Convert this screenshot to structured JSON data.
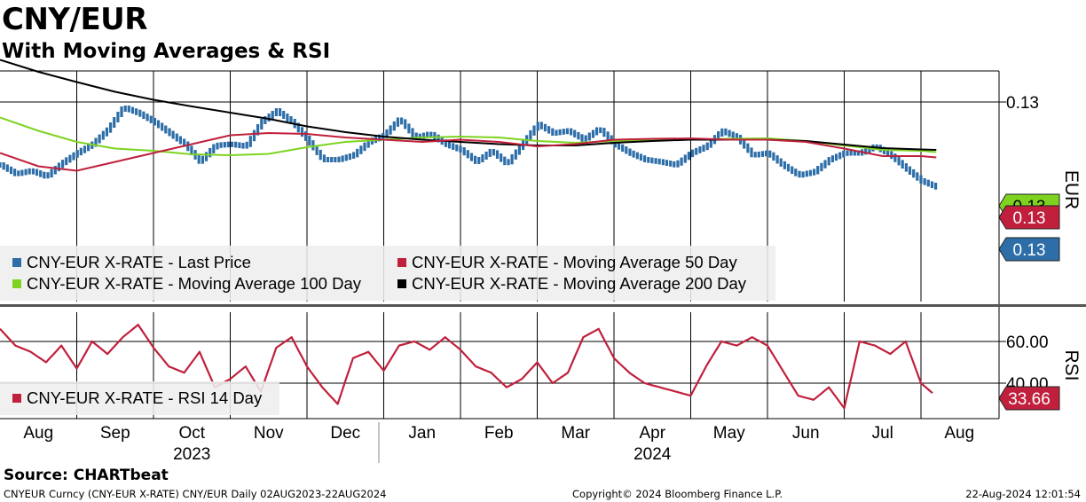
{
  "title": "CNY/EUR",
  "subtitle": "With Moving Averages & RSI",
  "source": "Source:  CHARTbeat",
  "footer": {
    "left": "CNYEUR Curncy (CNY-EUR X-RATE) CNY/EUR  Daily 02AUG2023-22AUG2024",
    "center": "Copyright© 2024 Bloomberg Finance L.P.",
    "right": "22-Aug-2024 12:01:54"
  },
  "colors": {
    "price": "#2d6ea8",
    "ma50": "#c0203c",
    "ma100": "#7ed321",
    "ma200": "#000000",
    "rsi": "#c0203c",
    "grid": "#000000"
  },
  "chart_data": [
    {
      "type": "line",
      "panel": "price",
      "title": "CNY/EUR",
      "ylabel": "EUR",
      "ylim": [
        0.1255,
        0.1307
      ],
      "yticks": [
        {
          "value": 0.13,
          "label": "0.13"
        }
      ],
      "months": [
        "Aug",
        "Sep",
        "Oct",
        "Nov",
        "Dec",
        "Jan",
        "Feb",
        "Mar",
        "Apr",
        "May",
        "Jun",
        "Jul",
        "Aug"
      ],
      "years": [
        {
          "label": "2023",
          "month_index": 2
        },
        {
          "label": "2024",
          "month_index": 8
        }
      ],
      "legend": [
        {
          "label": "CNY-EUR X-RATE - Last Price",
          "color": "#2d6ea8"
        },
        {
          "label": "CNY-EUR X-RATE - Moving Average 50 Day",
          "color": "#c0203c"
        },
        {
          "label": "CNY-EUR X-RATE - Moving Average 100 Day",
          "color": "#7ed321"
        },
        {
          "label": "CNY-EUR X-RATE - Moving Average 200 Day",
          "color": "#000000"
        }
      ],
      "last_value_tags": [
        {
          "label": "0.13",
          "value": 0.12889,
          "color": "#7ed321"
        },
        {
          "label": "0.13",
          "value": 0.12872,
          "color": "#c0203c"
        },
        {
          "label": "0.13",
          "value": 0.12818,
          "color": "#2d6ea8"
        }
      ],
      "series": [
        {
          "name": "CNY-EUR X-RATE - Last Price",
          "x_months": [
            0,
            0.2,
            0.4,
            0.6,
            0.8,
            1,
            1.2,
            1.4,
            1.6,
            1.8,
            2,
            2.2,
            2.4,
            2.6,
            2.8,
            3,
            3.2,
            3.4,
            3.6,
            3.8,
            4,
            4.2,
            4.4,
            4.6,
            4.8,
            5,
            5.2,
            5.4,
            5.6,
            5.8,
            6,
            6.2,
            6.4,
            6.6,
            6.8,
            7,
            7.2,
            7.4,
            7.6,
            7.8,
            8,
            8.2,
            8.4,
            8.6,
            8.8,
            9,
            9.2,
            9.4,
            9.6,
            9.8,
            10,
            10.2,
            10.4,
            10.6,
            10.8,
            11,
            11.2,
            11.4,
            11.6,
            11.8,
            12,
            12.2
          ],
          "values": [
            0.12858,
            0.12838,
            0.12845,
            0.12832,
            0.12862,
            0.12885,
            0.12905,
            0.12938,
            0.12988,
            0.12975,
            0.12955,
            0.1293,
            0.12905,
            0.12865,
            0.12902,
            0.12905,
            0.129,
            0.12955,
            0.1298,
            0.12955,
            0.12915,
            0.1287,
            0.1287,
            0.1288,
            0.1291,
            0.12925,
            0.12962,
            0.1292,
            0.12928,
            0.12905,
            0.12892,
            0.12865,
            0.1289,
            0.1286,
            0.12905,
            0.1295,
            0.1293,
            0.12935,
            0.12915,
            0.1294,
            0.12905,
            0.12885,
            0.1287,
            0.12865,
            0.12858,
            0.12885,
            0.129,
            0.12935,
            0.1292,
            0.1288,
            0.12885,
            0.12857,
            0.12835,
            0.12842,
            0.1287,
            0.12885,
            0.12885,
            0.129,
            0.1288,
            0.1285,
            0.12822,
            0.12808
          ]
        },
        {
          "name": "CNY-EUR X-RATE - Moving Average 50 Day",
          "x_months": [
            0,
            0.5,
            1,
            1.5,
            2,
            2.5,
            3,
            3.5,
            4,
            4.5,
            5,
            5.5,
            6,
            6.5,
            7,
            7.5,
            8,
            8.5,
            9,
            9.5,
            10,
            10.5,
            11,
            11.5,
            12,
            12.2
          ],
          "values": [
            0.12885,
            0.12855,
            0.12845,
            0.12865,
            0.12885,
            0.12905,
            0.12925,
            0.1293,
            0.12928,
            0.1292,
            0.12915,
            0.1291,
            0.12915,
            0.1291,
            0.129,
            0.12905,
            0.12915,
            0.12917,
            0.12918,
            0.12915,
            0.12915,
            0.1291,
            0.12895,
            0.12878,
            0.12878,
            0.12875
          ]
        },
        {
          "name": "CNY-EUR X-RATE - Moving Average 100 Day",
          "x_months": [
            0,
            0.5,
            1,
            1.5,
            2,
            2.5,
            3,
            3.5,
            4,
            4.5,
            5,
            5.5,
            6,
            6.5,
            7,
            7.5,
            8,
            8.5,
            9,
            9.5,
            10,
            10.5,
            11,
            11.5,
            12,
            12.2
          ],
          "values": [
            0.12965,
            0.12935,
            0.1291,
            0.12895,
            0.1289,
            0.12882,
            0.1288,
            0.12883,
            0.12898,
            0.1291,
            0.12915,
            0.1292,
            0.12922,
            0.1292,
            0.12912,
            0.12908,
            0.12912,
            0.12915,
            0.12915,
            0.12917,
            0.12918,
            0.12912,
            0.12902,
            0.12892,
            0.1289,
            0.12887
          ]
        },
        {
          "name": "CNY-EUR X-RATE - Moving Average 200 Day",
          "x_months": [
            0,
            0.5,
            1,
            1.5,
            2,
            2.5,
            3,
            3.5,
            4,
            4.5,
            5,
            5.5,
            6,
            6.5,
            7,
            7.5,
            8,
            8.5,
            9,
            9.5,
            10,
            10.5,
            11,
            11.5,
            12,
            12.2
          ],
          "values": [
            0.13095,
            0.13068,
            0.13045,
            0.13023,
            0.13005,
            0.1299,
            0.12976,
            0.12962,
            0.12945,
            0.12932,
            0.12922,
            0.12915,
            0.1291,
            0.12905,
            0.12902,
            0.12902,
            0.12908,
            0.12912,
            0.12915,
            0.12915,
            0.12915,
            0.12912,
            0.12904,
            0.12896,
            0.12893,
            0.12892
          ]
        }
      ]
    },
    {
      "type": "line",
      "panel": "rsi",
      "ylabel": "RSI",
      "ylim": [
        23,
        74
      ],
      "yticks": [
        {
          "value": 60,
          "label": "60.00"
        },
        {
          "value": 40,
          "label": "40.00"
        }
      ],
      "legend": [
        {
          "label": "CNY-EUR X-RATE - RSI 14 Day",
          "color": "#c0203c"
        }
      ],
      "last_value_tags": [
        {
          "label": "33.66",
          "value": 33.66,
          "color": "#c0203c"
        }
      ],
      "series": [
        {
          "name": "CNY-EUR X-RATE - RSI 14 Day",
          "x_months": [
            0,
            0.2,
            0.4,
            0.6,
            0.8,
            1,
            1.2,
            1.4,
            1.6,
            1.8,
            2,
            2.2,
            2.4,
            2.6,
            2.8,
            3,
            3.2,
            3.4,
            3.6,
            3.8,
            4,
            4.2,
            4.4,
            4.6,
            4.8,
            5,
            5.2,
            5.4,
            5.6,
            5.8,
            6,
            6.2,
            6.4,
            6.6,
            6.8,
            7,
            7.2,
            7.4,
            7.6,
            7.8,
            8,
            8.2,
            8.4,
            8.6,
            8.8,
            9,
            9.2,
            9.4,
            9.6,
            9.8,
            10,
            10.2,
            10.4,
            10.6,
            10.8,
            11,
            11.2,
            11.4,
            11.6,
            11.8,
            12,
            12.2
          ],
          "values": [
            66,
            58,
            55,
            50,
            58,
            47,
            60,
            54,
            62,
            68,
            57,
            48,
            45,
            55,
            38,
            42,
            48,
            36,
            57,
            62,
            48,
            38,
            30,
            52,
            55,
            46,
            58,
            60,
            56,
            62,
            56,
            48,
            45,
            38,
            42,
            50,
            40,
            45,
            62,
            66,
            52,
            45,
            40,
            38,
            36,
            34,
            48,
            60,
            58,
            62,
            58,
            46,
            34,
            32,
            38,
            28,
            60,
            58,
            54,
            60,
            40,
            33.66
          ]
        }
      ]
    }
  ]
}
